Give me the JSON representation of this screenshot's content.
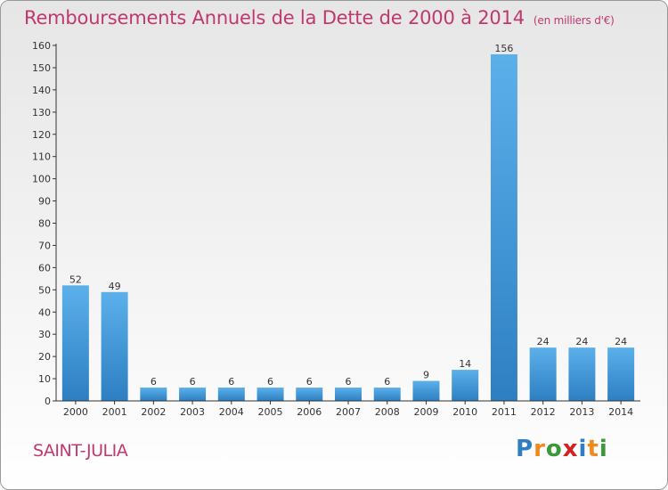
{
  "title": "Remboursements Annuels de la Dette de 2000 à 2014",
  "unit": "(en milliers d'€)",
  "place": "SAINT-JULIA",
  "brand": {
    "letters": [
      "P",
      "r",
      "o",
      "x",
      "i",
      "t",
      "i"
    ],
    "colors": [
      "#2f7ec2",
      "#f08a1c",
      "#3a9a3a",
      "#d42020",
      "#2f7ec2",
      "#f08a1c",
      "#3a9a3a"
    ]
  },
  "colors": {
    "bar_light": "#5cb0ea",
    "bar_dark": "#2d7fc2",
    "text": "#c0386f",
    "axis": "#333333"
  },
  "chart_data": {
    "type": "bar",
    "categories": [
      "2000",
      "2001",
      "2002",
      "2003",
      "2004",
      "2005",
      "2006",
      "2007",
      "2008",
      "2009",
      "2010",
      "2011",
      "2012",
      "2013",
      "2014"
    ],
    "values": [
      52,
      49,
      6,
      6,
      6,
      6,
      6,
      6,
      6,
      9,
      14,
      156,
      24,
      24,
      24
    ],
    "ylim": [
      0,
      160
    ],
    "yticks": [
      0,
      10,
      20,
      30,
      40,
      50,
      60,
      70,
      80,
      90,
      100,
      110,
      120,
      130,
      140,
      150,
      160
    ],
    "xlabel": "",
    "ylabel": "",
    "grid": false,
    "data_labels": true
  }
}
